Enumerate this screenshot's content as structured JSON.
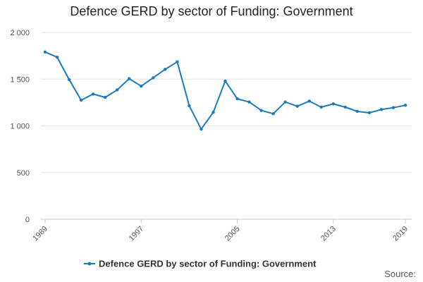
{
  "chart_data": {
    "type": "line",
    "title": "Defence GERD by sector of Funding: Government",
    "xlabel": "",
    "ylabel": "",
    "ylim": [
      0,
      2000
    ],
    "xlim": [
      1989,
      2019
    ],
    "yticks": [
      0,
      500,
      1000,
      1500,
      2000
    ],
    "ytick_labels": [
      "0",
      "500",
      "1 000",
      "1 500",
      "2 000"
    ],
    "xticks": [
      1989,
      1997,
      2005,
      2013,
      2019
    ],
    "xtick_labels": [
      "1989",
      "1997",
      "2005",
      "2013",
      "2019"
    ],
    "grid": true,
    "legend_position": "bottom-center",
    "color": "#1a7cbf",
    "series": [
      {
        "name": "Defence GERD by sector of Funding: Government",
        "x": [
          1989,
          1990,
          1991,
          1992,
          1993,
          1994,
          1995,
          1996,
          1997,
          1998,
          1999,
          2000,
          2001,
          2002,
          2003,
          2004,
          2005,
          2006,
          2007,
          2008,
          2009,
          2010,
          2011,
          2012,
          2013,
          2014,
          2015,
          2016,
          2017,
          2018,
          2019
        ],
        "values": [
          1790,
          1735,
          1495,
          1275,
          1340,
          1305,
          1385,
          1505,
          1425,
          1515,
          1605,
          1685,
          1215,
          965,
          1145,
          1480,
          1290,
          1255,
          1165,
          1130,
          1255,
          1210,
          1265,
          1200,
          1235,
          1200,
          1155,
          1140,
          1175,
          1195,
          1220
        ]
      }
    ]
  },
  "source_label": "Source:"
}
